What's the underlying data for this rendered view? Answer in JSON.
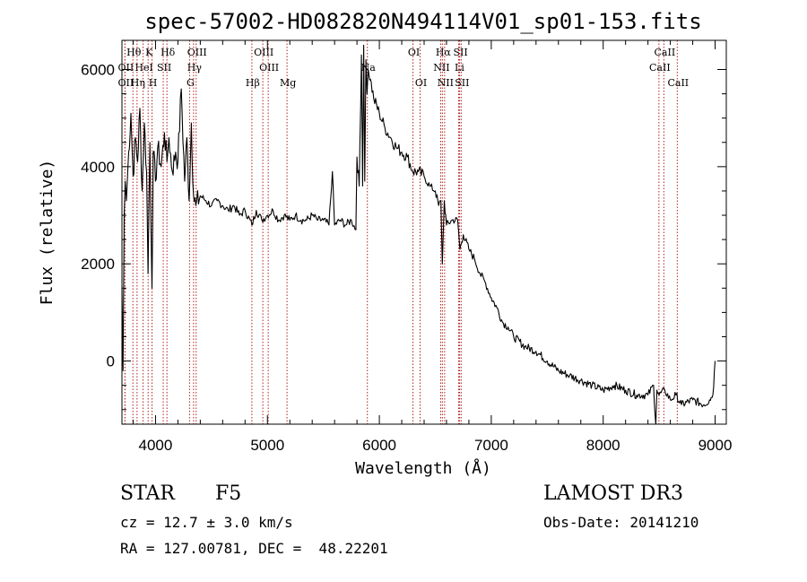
{
  "chart_data": {
    "type": "line",
    "title": "spec-57002-HD082820N494114V01_sp01-153.fits",
    "xlabel": "Wavelength (Å)",
    "ylabel": "Flux (relative)",
    "xlim": [
      3700,
      9100
    ],
    "ylim": [
      -1300,
      6600
    ],
    "x_ticks": [
      4000,
      5000,
      6000,
      7000,
      8000,
      9000
    ],
    "x_tick_labels": [
      "4000",
      "5000",
      "6000",
      "7000",
      "8000",
      "9000"
    ],
    "y_ticks": [
      0,
      2000,
      4000,
      6000
    ],
    "y_tick_labels": [
      "0",
      "2000",
      "4000",
      "6000"
    ],
    "series": [
      {
        "name": "flux",
        "x": [
          3700,
          3710,
          3720,
          3730,
          3740,
          3760,
          3780,
          3800,
          3820,
          3840,
          3860,
          3880,
          3900,
          3920,
          3933,
          3950,
          3968,
          3980,
          4000,
          4020,
          4050,
          4080,
          4102,
          4120,
          4150,
          4180,
          4200,
          4230,
          4260,
          4280,
          4300,
          4320,
          4340,
          4360,
          4400,
          4450,
          4500,
          4550,
          4600,
          4650,
          4700,
          4750,
          4800,
          4861,
          4900,
          4950,
          5000,
          5050,
          5100,
          5150,
          5200,
          5250,
          5300,
          5350,
          5400,
          5450,
          5500,
          5550,
          5580,
          5600,
          5650,
          5700,
          5750,
          5790,
          5800,
          5820,
          5840,
          5850,
          5860,
          5870,
          5880,
          5890,
          5900,
          5920,
          5950,
          6000,
          6050,
          6100,
          6150,
          6200,
          6250,
          6300,
          6350,
          6400,
          6450,
          6500,
          6530,
          6550,
          6563,
          6580,
          6600,
          6650,
          6700,
          6720,
          6750,
          6800,
          6850,
          6900,
          6950,
          7000,
          7050,
          7100,
          7150,
          7200,
          7300,
          7400,
          7500,
          7600,
          7700,
          7800,
          7900,
          8000,
          8100,
          8200,
          8300,
          8400,
          8450,
          8470,
          8480,
          8500,
          8550,
          8600,
          8650,
          8700,
          8800,
          8900,
          8950,
          8980,
          9000
        ],
        "y": [
          1500,
          -200,
          3000,
          3700,
          3300,
          4300,
          5100,
          3800,
          4600,
          4100,
          5200,
          3500,
          4900,
          3900,
          1800,
          4500,
          1500,
          4300,
          3700,
          4400,
          4000,
          4700,
          4100,
          4600,
          3900,
          4300,
          4100,
          5600,
          3700,
          4600,
          3300,
          4900,
          3400,
          3200,
          3400,
          3300,
          3200,
          3300,
          3200,
          3100,
          3200,
          3000,
          3100,
          2800,
          3100,
          2900,
          3000,
          3100,
          2900,
          3000,
          2900,
          3000,
          2900,
          2900,
          3000,
          2900,
          2900,
          2800,
          3900,
          2800,
          2900,
          2800,
          2900,
          2700,
          4200,
          3600,
          6300,
          3600,
          6500,
          3700,
          6200,
          5500,
          6000,
          5800,
          5400,
          5100,
          4800,
          4600,
          4400,
          4300,
          4200,
          3900,
          3900,
          3800,
          3600,
          3500,
          3200,
          3300,
          2000,
          3300,
          2800,
          2900,
          2900,
          2300,
          2600,
          2300,
          2100,
          1800,
          1600,
          1300,
          1100,
          800,
          700,
          500,
          300,
          200,
          0,
          -200,
          -300,
          -400,
          -500,
          -600,
          -500,
          -600,
          -700,
          -700,
          -500,
          -1300,
          -600,
          -700,
          -600,
          -800,
          -700,
          -900,
          -800,
          -900,
          -800,
          -700,
          0
        ]
      }
    ],
    "line_markers": [
      {
        "label": "Hθ",
        "x": 3798,
        "row": 1
      },
      {
        "label": "K",
        "x": 3934,
        "row": 1
      },
      {
        "label": "Hδ",
        "x": 4102,
        "row": 1
      },
      {
        "label": "OIII",
        "x": 4363,
        "row": 1
      },
      {
        "label": "OIII",
        "x": 4959,
        "row": 1
      },
      {
        "label": "OI",
        "x": 6300,
        "row": 1
      },
      {
        "label": "Hα",
        "x": 6563,
        "row": 1
      },
      {
        "label": "SII",
        "x": 6717,
        "row": 1
      },
      {
        "label": "CaII",
        "x": 8542,
        "row": 1
      },
      {
        "label": "OII",
        "x": 3727,
        "row": 2
      },
      {
        "label": "HeI",
        "x": 3889,
        "row": 2
      },
      {
        "label": "SII",
        "x": 4069,
        "row": 2
      },
      {
        "label": "Hγ",
        "x": 4340,
        "row": 2
      },
      {
        "label": "OIII",
        "x": 5007,
        "row": 2
      },
      {
        "label": "Na",
        "x": 5893,
        "row": 2
      },
      {
        "label": "NII",
        "x": 6548,
        "row": 2
      },
      {
        "label": "Li",
        "x": 6708,
        "row": 2
      },
      {
        "label": "CaII",
        "x": 8498,
        "row": 2
      },
      {
        "label": "OII",
        "x": 3727,
        "row": 3
      },
      {
        "label": "Hη",
        "x": 3835,
        "row": 3
      },
      {
        "label": "H",
        "x": 3969,
        "row": 3
      },
      {
        "label": "G",
        "x": 4304,
        "row": 3
      },
      {
        "label": "Hβ",
        "x": 4861,
        "row": 3
      },
      {
        "label": "Mg",
        "x": 5175,
        "row": 3
      },
      {
        "label": "OI",
        "x": 6364,
        "row": 3
      },
      {
        "label": "NII",
        "x": 6583,
        "row": 3
      },
      {
        "label": "SII",
        "x": 6731,
        "row": 3
      },
      {
        "label": "CaII",
        "x": 8662,
        "row": 3
      }
    ]
  },
  "footer": {
    "class_label": "STAR",
    "subclass": "F5",
    "survey": "LAMOST DR3",
    "cz": "cz = 12.7 ± 3.0 km/s",
    "obs_date": "Obs-Date: 20141210",
    "coords": "RA = 127.00781, DEC =  48.22201"
  }
}
